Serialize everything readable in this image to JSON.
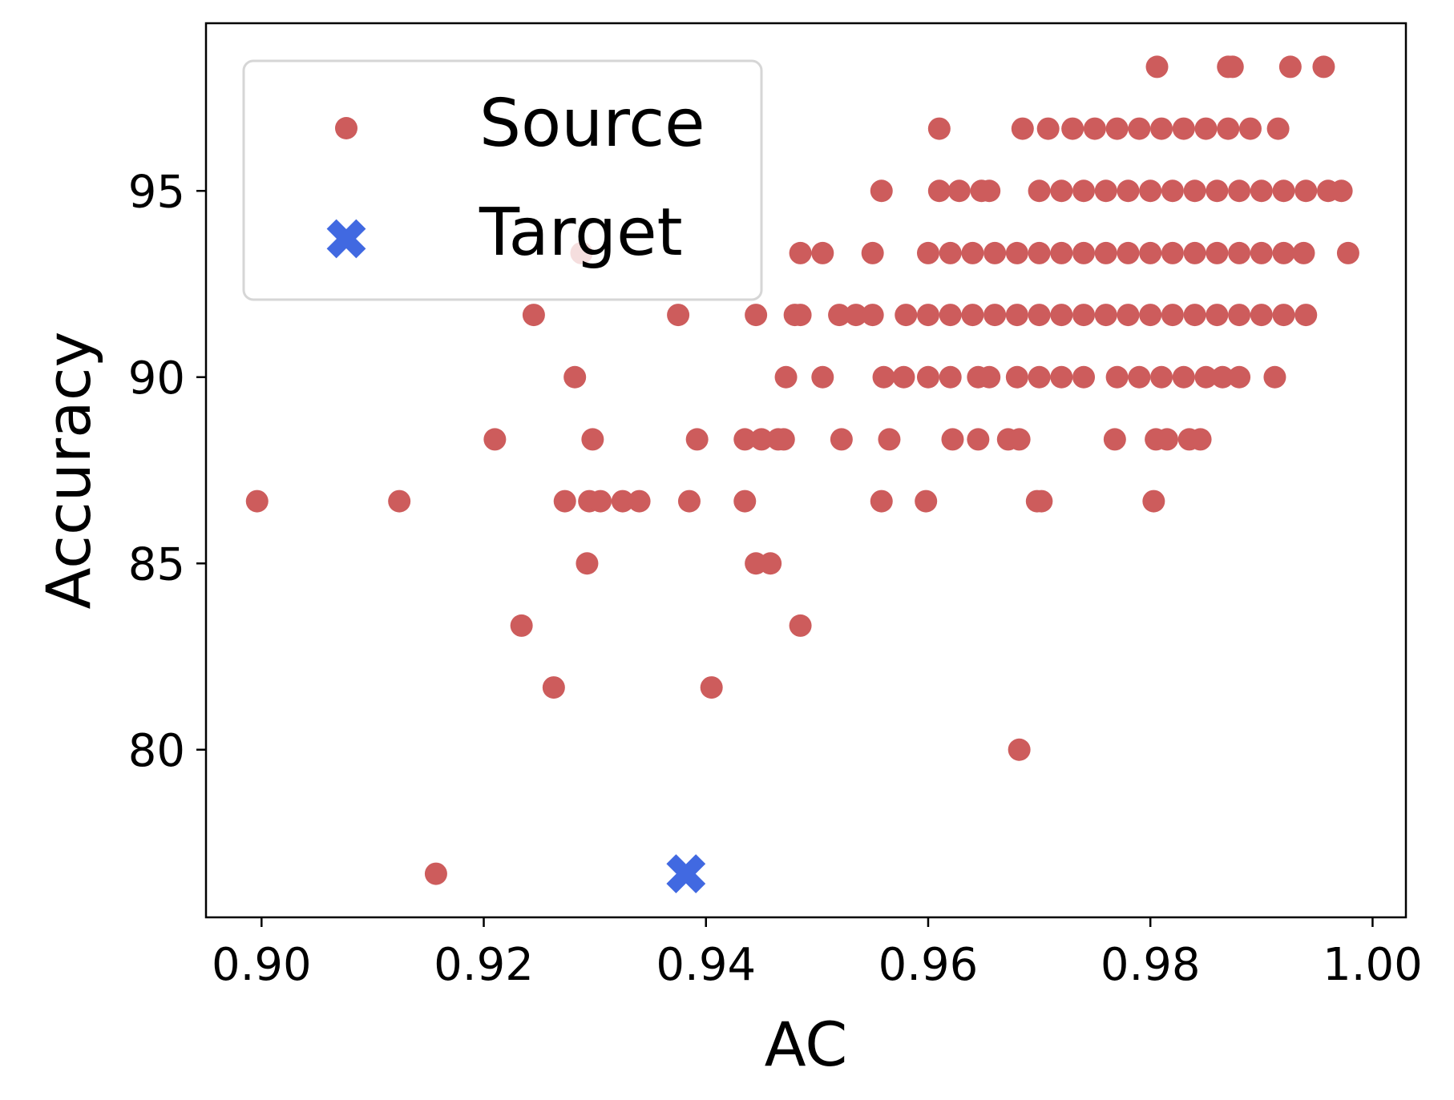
{
  "chart_data": {
    "type": "scatter",
    "title": "",
    "xlabel": "AC",
    "ylabel": "Accuracy",
    "xlim": [
      0.895,
      1.003
    ],
    "ylim": [
      75.5,
      99.5
    ],
    "xticks": [
      0.9,
      0.92,
      0.94,
      0.96,
      0.98,
      1.0
    ],
    "xtick_labels": [
      "0.90",
      "0.92",
      "0.94",
      "0.96",
      "0.98",
      "1.00"
    ],
    "yticks": [
      80,
      85,
      90,
      95
    ],
    "ytick_labels": [
      "80",
      "85",
      "90",
      "95"
    ],
    "grid": false,
    "legend_position": "top-left",
    "series": [
      {
        "name": "Source",
        "marker": "circle",
        "color": "#CD5C5C",
        "points": [
          [
            0.9806,
            98.33
          ],
          [
            0.987,
            98.33
          ],
          [
            0.9874,
            98.33
          ],
          [
            0.9926,
            98.33
          ],
          [
            0.9956,
            98.33
          ],
          [
            0.961,
            96.67
          ],
          [
            0.9685,
            96.67
          ],
          [
            0.9708,
            96.67
          ],
          [
            0.973,
            96.67
          ],
          [
            0.975,
            96.67
          ],
          [
            0.977,
            96.67
          ],
          [
            0.979,
            96.67
          ],
          [
            0.981,
            96.67
          ],
          [
            0.983,
            96.67
          ],
          [
            0.985,
            96.67
          ],
          [
            0.987,
            96.67
          ],
          [
            0.989,
            96.67
          ],
          [
            0.9915,
            96.67
          ],
          [
            0.9558,
            95.0
          ],
          [
            0.961,
            95.0
          ],
          [
            0.9628,
            95.0
          ],
          [
            0.9648,
            95.0
          ],
          [
            0.9655,
            95.0
          ],
          [
            0.97,
            95.0
          ],
          [
            0.972,
            95.0
          ],
          [
            0.974,
            95.0
          ],
          [
            0.976,
            95.0
          ],
          [
            0.978,
            95.0
          ],
          [
            0.98,
            95.0
          ],
          [
            0.982,
            95.0
          ],
          [
            0.984,
            95.0
          ],
          [
            0.986,
            95.0
          ],
          [
            0.988,
            95.0
          ],
          [
            0.99,
            95.0
          ],
          [
            0.992,
            95.0
          ],
          [
            0.994,
            95.0
          ],
          [
            0.996,
            95.0
          ],
          [
            0.9972,
            95.0
          ],
          [
            0.9288,
            93.33
          ],
          [
            0.9485,
            93.33
          ],
          [
            0.9505,
            93.33
          ],
          [
            0.955,
            93.33
          ],
          [
            0.96,
            93.33
          ],
          [
            0.962,
            93.33
          ],
          [
            0.964,
            93.33
          ],
          [
            0.966,
            93.33
          ],
          [
            0.968,
            93.33
          ],
          [
            0.97,
            93.33
          ],
          [
            0.972,
            93.33
          ],
          [
            0.974,
            93.33
          ],
          [
            0.976,
            93.33
          ],
          [
            0.978,
            93.33
          ],
          [
            0.98,
            93.33
          ],
          [
            0.982,
            93.33
          ],
          [
            0.984,
            93.33
          ],
          [
            0.986,
            93.33
          ],
          [
            0.988,
            93.33
          ],
          [
            0.99,
            93.33
          ],
          [
            0.992,
            93.33
          ],
          [
            0.9938,
            93.33
          ],
          [
            0.9978,
            93.33
          ],
          [
            0.9245,
            91.67
          ],
          [
            0.9375,
            91.67
          ],
          [
            0.9445,
            91.67
          ],
          [
            0.948,
            91.67
          ],
          [
            0.9485,
            91.67
          ],
          [
            0.952,
            91.67
          ],
          [
            0.9535,
            91.67
          ],
          [
            0.955,
            91.67
          ],
          [
            0.958,
            91.67
          ],
          [
            0.96,
            91.67
          ],
          [
            0.962,
            91.67
          ],
          [
            0.964,
            91.67
          ],
          [
            0.966,
            91.67
          ],
          [
            0.968,
            91.67
          ],
          [
            0.97,
            91.67
          ],
          [
            0.972,
            91.67
          ],
          [
            0.974,
            91.67
          ],
          [
            0.976,
            91.67
          ],
          [
            0.978,
            91.67
          ],
          [
            0.98,
            91.67
          ],
          [
            0.982,
            91.67
          ],
          [
            0.984,
            91.67
          ],
          [
            0.986,
            91.67
          ],
          [
            0.988,
            91.67
          ],
          [
            0.99,
            91.67
          ],
          [
            0.992,
            91.67
          ],
          [
            0.994,
            91.67
          ],
          [
            0.9282,
            90.0
          ],
          [
            0.9472,
            90.0
          ],
          [
            0.9505,
            90.0
          ],
          [
            0.956,
            90.0
          ],
          [
            0.9578,
            90.0
          ],
          [
            0.96,
            90.0
          ],
          [
            0.962,
            90.0
          ],
          [
            0.9645,
            90.0
          ],
          [
            0.9655,
            90.0
          ],
          [
            0.968,
            90.0
          ],
          [
            0.97,
            90.0
          ],
          [
            0.972,
            90.0
          ],
          [
            0.974,
            90.0
          ],
          [
            0.977,
            90.0
          ],
          [
            0.979,
            90.0
          ],
          [
            0.981,
            90.0
          ],
          [
            0.983,
            90.0
          ],
          [
            0.985,
            90.0
          ],
          [
            0.9865,
            90.0
          ],
          [
            0.988,
            90.0
          ],
          [
            0.9912,
            90.0
          ],
          [
            0.921,
            88.33
          ],
          [
            0.9298,
            88.33
          ],
          [
            0.9392,
            88.33
          ],
          [
            0.9435,
            88.33
          ],
          [
            0.945,
            88.33
          ],
          [
            0.9465,
            88.33
          ],
          [
            0.947,
            88.33
          ],
          [
            0.9522,
            88.33
          ],
          [
            0.9565,
            88.33
          ],
          [
            0.9622,
            88.33
          ],
          [
            0.9645,
            88.33
          ],
          [
            0.9672,
            88.33
          ],
          [
            0.9682,
            88.33
          ],
          [
            0.9768,
            88.33
          ],
          [
            0.9805,
            88.33
          ],
          [
            0.9815,
            88.33
          ],
          [
            0.9835,
            88.33
          ],
          [
            0.9845,
            88.33
          ],
          [
            0.8996,
            86.67
          ],
          [
            0.9124,
            86.67
          ],
          [
            0.9273,
            86.67
          ],
          [
            0.9295,
            86.67
          ],
          [
            0.9305,
            86.67
          ],
          [
            0.9325,
            86.67
          ],
          [
            0.934,
            86.67
          ],
          [
            0.9385,
            86.67
          ],
          [
            0.9435,
            86.67
          ],
          [
            0.9558,
            86.67
          ],
          [
            0.9598,
            86.67
          ],
          [
            0.9698,
            86.67
          ],
          [
            0.9702,
            86.67
          ],
          [
            0.9803,
            86.67
          ],
          [
            0.9293,
            85.0
          ],
          [
            0.9445,
            85.0
          ],
          [
            0.9458,
            85.0
          ],
          [
            0.9234,
            83.33
          ],
          [
            0.9485,
            83.33
          ],
          [
            0.9263,
            81.67
          ],
          [
            0.9405,
            81.67
          ],
          [
            0.9682,
            80.0
          ],
          [
            0.9157,
            76.67
          ]
        ]
      },
      {
        "name": "Target",
        "marker": "x-filled",
        "color": "#4169E1",
        "points": [
          [
            0.9382,
            76.67
          ]
        ]
      }
    ]
  }
}
